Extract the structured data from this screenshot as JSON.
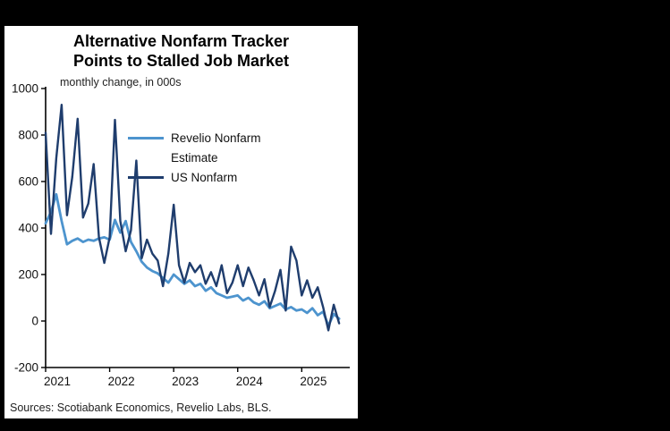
{
  "page": {
    "background_color": "#000000",
    "panel_color": "#ffffff"
  },
  "chart_data": {
    "type": "line",
    "title_line1": "Alternative Nonfarm Tracker",
    "title_line2": "Points to Stalled Job Market",
    "subtitle": "monthly change, in 000s",
    "source": "Sources: Scotiabank Economics, Revelio Labs, BLS.",
    "ylim": [
      -200,
      1000
    ],
    "yticks": [
      -200,
      0,
      200,
      400,
      600,
      800,
      1000
    ],
    "xticks": [
      2021,
      2022,
      2023,
      2024,
      2025
    ],
    "x_domain": [
      2021.0,
      2025.75
    ],
    "start_month": "2021-01",
    "frequency": "monthly",
    "grid": false,
    "legend_position": "inside-upper-center",
    "axis_color": "#000000",
    "legend": {
      "revelio_line1": "Revelio Nonfarm",
      "revelio_line2": "Estimate",
      "us": "US Nonfarm"
    },
    "series": [
      {
        "name": "Revelio Nonfarm Estimate",
        "color": "#4d94ce",
        "stroke_width": 2.8,
        "values": [
          420,
          470,
          545,
          430,
          330,
          345,
          355,
          340,
          350,
          345,
          355,
          360,
          350,
          435,
          380,
          430,
          340,
          300,
          255,
          230,
          215,
          205,
          185,
          165,
          200,
          180,
          160,
          175,
          150,
          160,
          130,
          145,
          120,
          110,
          100,
          105,
          110,
          88,
          100,
          80,
          70,
          85,
          55,
          65,
          75,
          50,
          60,
          45,
          50,
          35,
          55,
          25,
          40,
          -20,
          30,
          10
        ]
      },
      {
        "name": "US Nonfarm",
        "color": "#1f3d6d",
        "stroke_width": 2.4,
        "values": [
          810,
          375,
          700,
          930,
          455,
          620,
          870,
          445,
          505,
          675,
          360,
          250,
          360,
          865,
          430,
          300,
          390,
          690,
          270,
          350,
          290,
          260,
          150,
          290,
          500,
          240,
          165,
          250,
          210,
          240,
          160,
          210,
          150,
          240,
          120,
          165,
          240,
          150,
          230,
          175,
          110,
          180,
          60,
          130,
          220,
          45,
          320,
          260,
          110,
          175,
          100,
          145,
          60,
          -40,
          70,
          -10
        ]
      }
    ]
  }
}
